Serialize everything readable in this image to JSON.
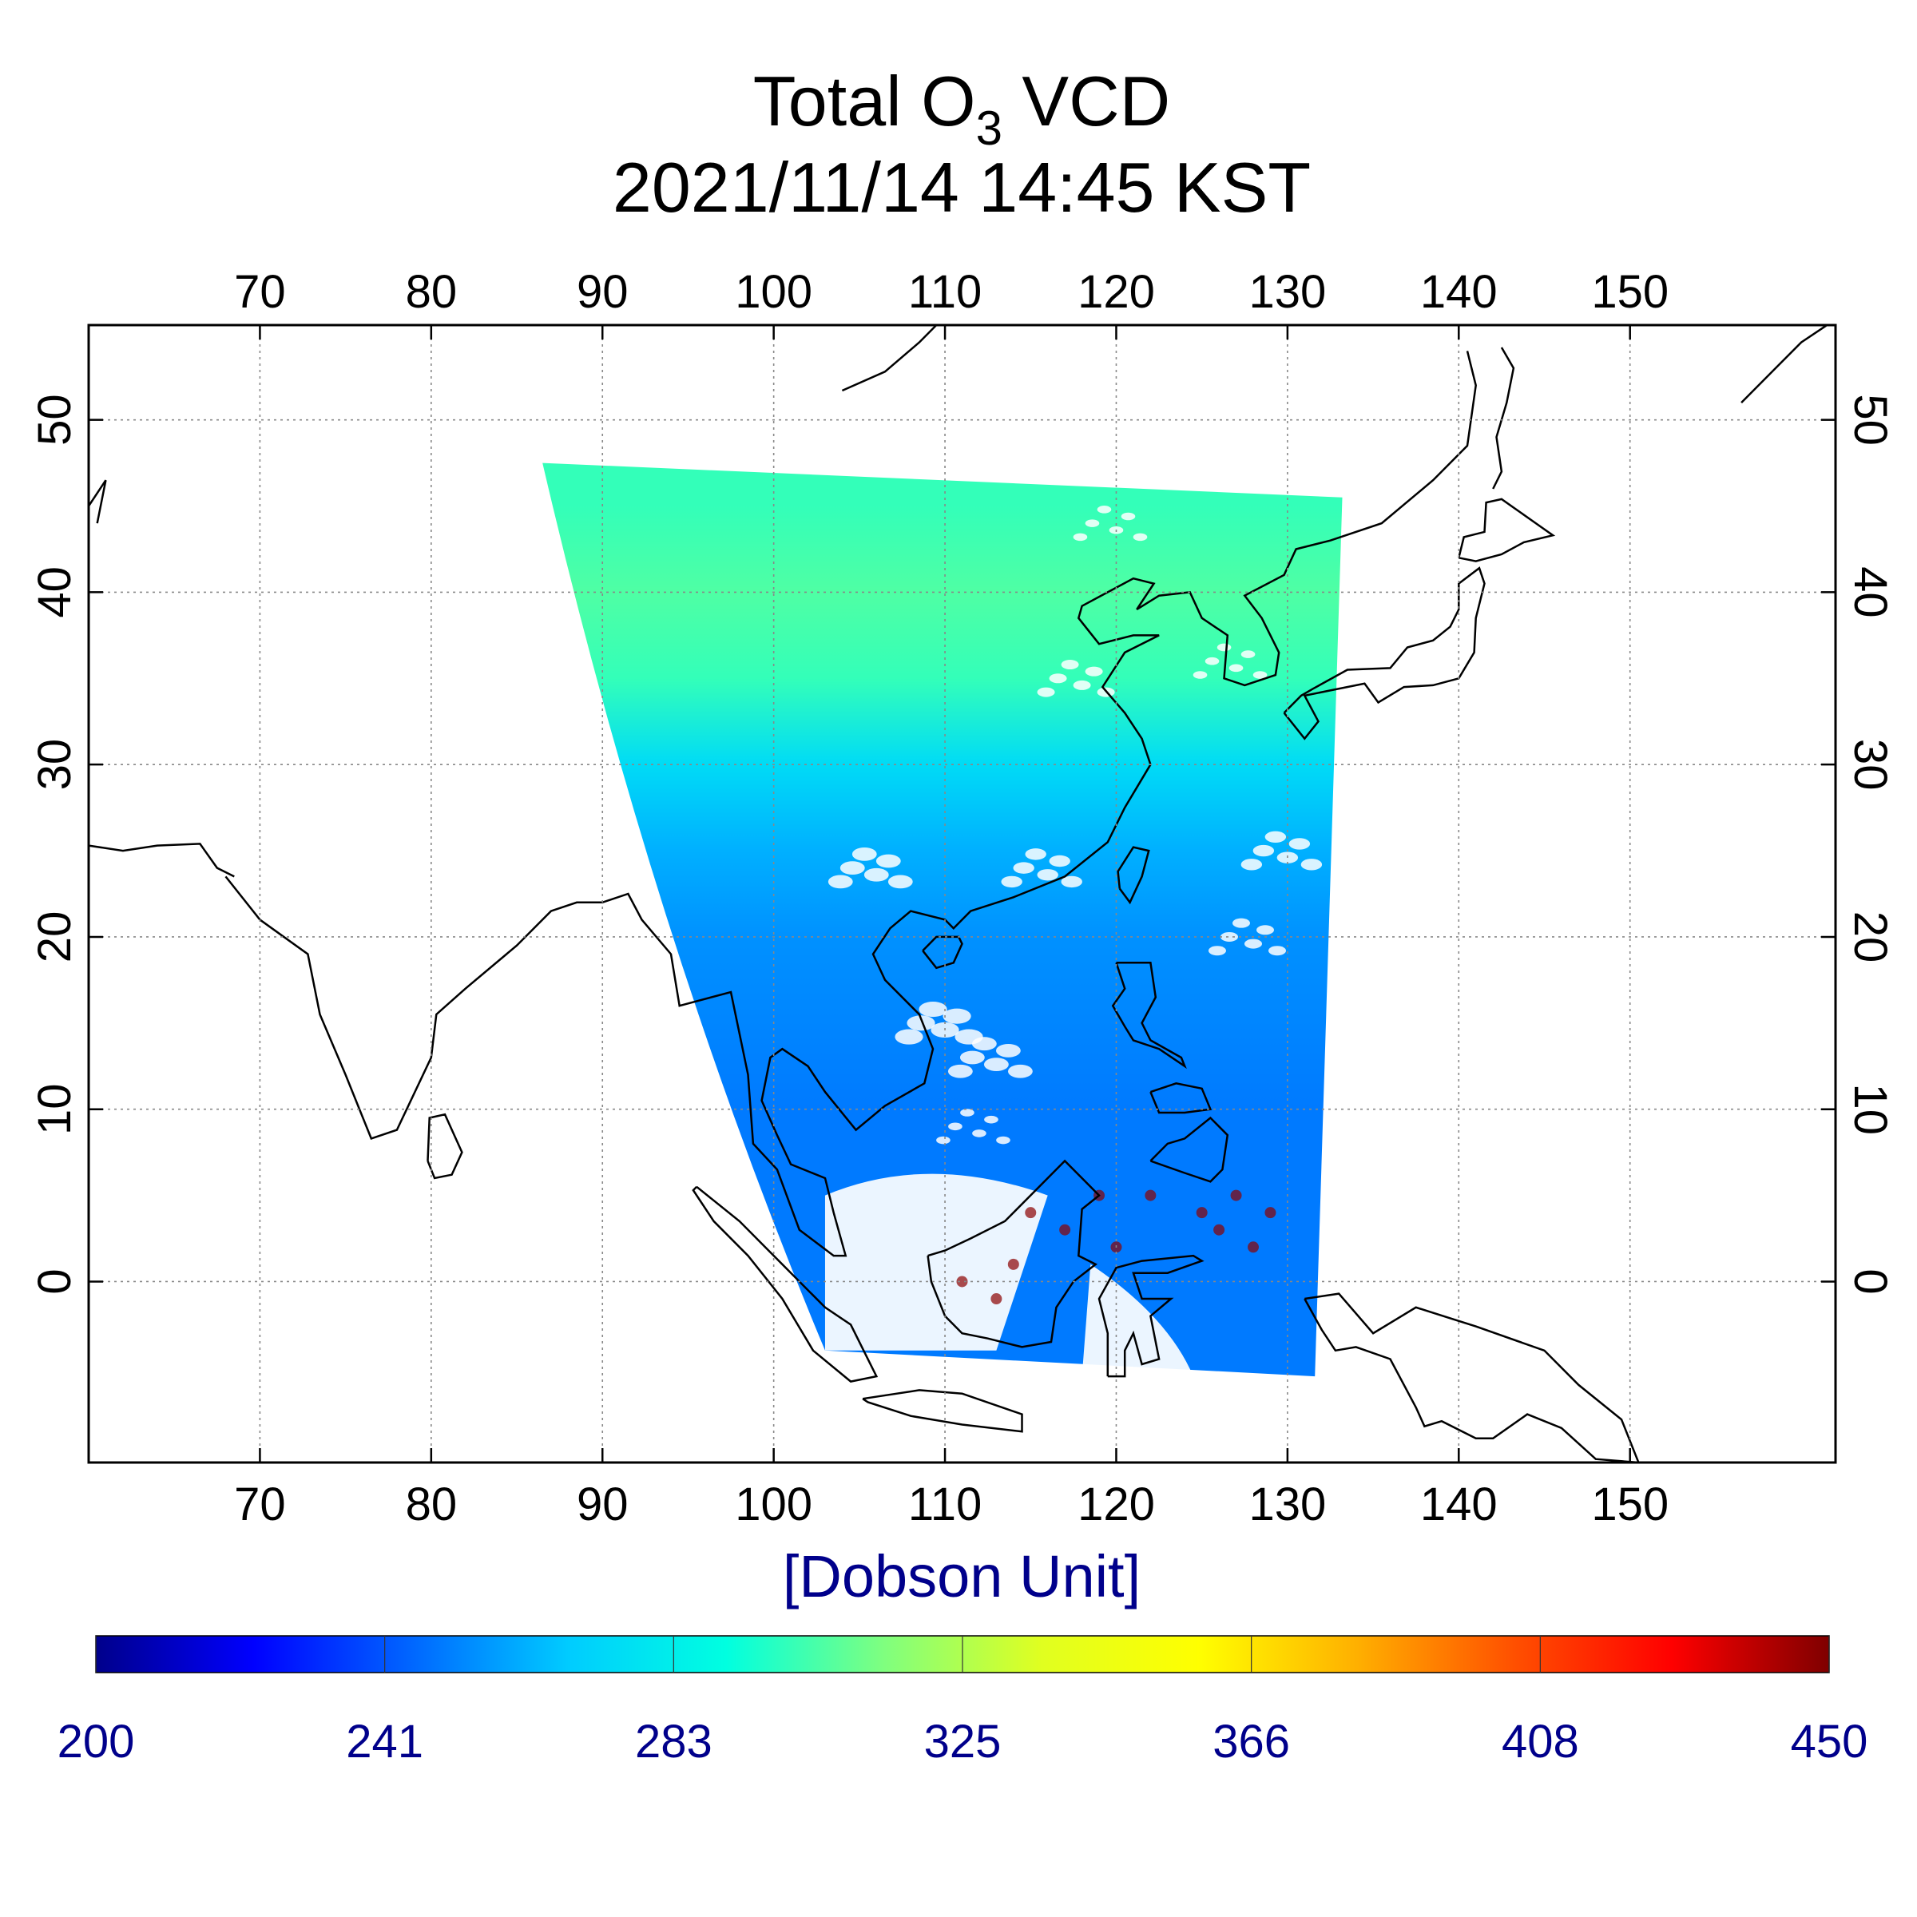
{
  "title": {
    "line1_prefix": "Total O",
    "line1_subscript": "3",
    "line1_suffix": " VCD",
    "line2": "2021/11/14 14:45 KST"
  },
  "colorbar": {
    "unit_label": "[Dobson Unit]",
    "tick_labels": [
      "200",
      "241",
      "283",
      "325",
      "366",
      "408",
      "450"
    ],
    "min": 200,
    "max": 450,
    "colormap": "jet",
    "colors": [
      "#00008b",
      "#0000ff",
      "#0066ff",
      "#00ccff",
      "#00ffe0",
      "#7fff7f",
      "#e0ff20",
      "#ffff00",
      "#ffb000",
      "#ff5000",
      "#ff0000",
      "#7f0000"
    ]
  },
  "chart_data": {
    "type": "heatmap",
    "title": "Total O3 VCD 2021/11/14 14:45 KST",
    "colorbar_label": "[Dobson Unit]",
    "lon_range": [
      60,
      162
    ],
    "lat_range": [
      -10.5,
      55.5
    ],
    "lon_ticks": [
      70,
      80,
      90,
      100,
      110,
      120,
      130,
      140,
      150
    ],
    "lat_ticks": [
      0,
      10,
      20,
      30,
      40,
      50
    ],
    "lon_tick_labels": [
      "70",
      "80",
      "90",
      "100",
      "110",
      "120",
      "130",
      "140",
      "150"
    ],
    "lat_tick_labels": [
      "0",
      "10",
      "20",
      "30",
      "40",
      "50"
    ],
    "grid": true,
    "swath_corners": [
      {
        "lon": 86.5,
        "lat": 47.5
      },
      {
        "lon": 133.2,
        "lat": 45.5
      },
      {
        "lon": 131.6,
        "lat": -5.5
      },
      {
        "lon": 103,
        "lat": -4
      }
    ],
    "ozone_by_latitude": [
      {
        "lat": 45,
        "du": 300
      },
      {
        "lat": 40,
        "du": 305
      },
      {
        "lat": 35,
        "du": 300
      },
      {
        "lat": 30,
        "du": 275
      },
      {
        "lat": 25,
        "du": 262
      },
      {
        "lat": 20,
        "du": 255
      },
      {
        "lat": 10,
        "du": 250
      },
      {
        "lat": 0,
        "du": 250
      }
    ]
  }
}
